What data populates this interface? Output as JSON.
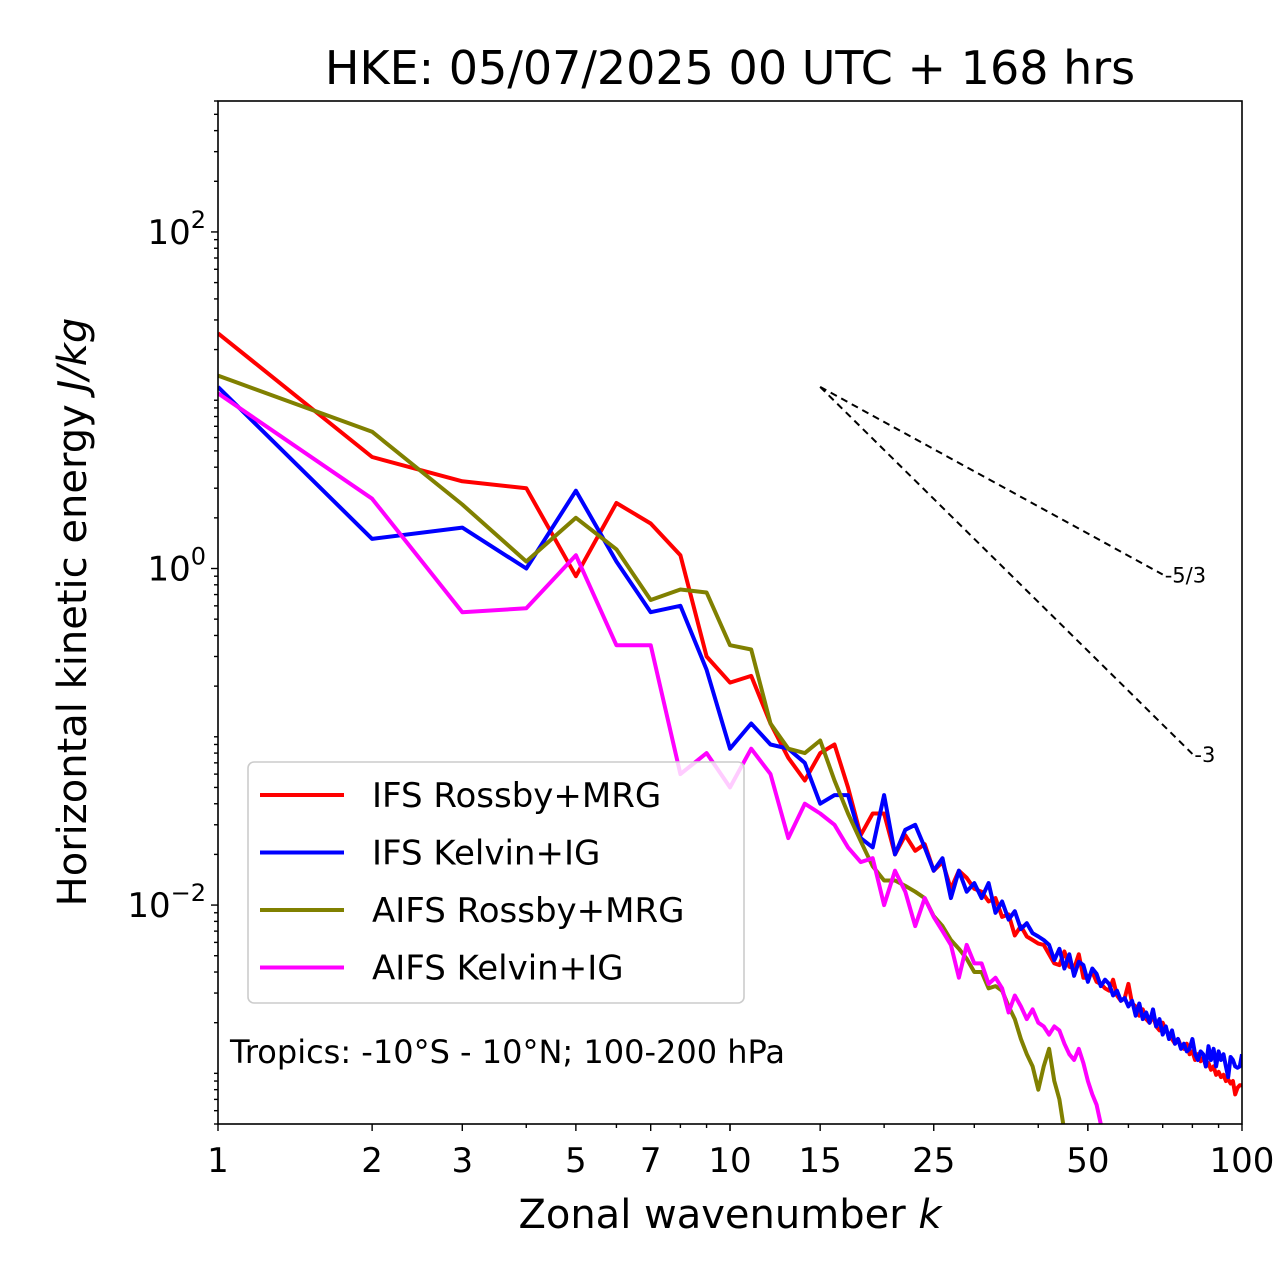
{
  "chart_data": {
    "type": "line",
    "title": "HKE: 05/07/2025 00 UTC + 168 hrs",
    "xlabel": "Zonal wavenumber",
    "xlabel_var": "k",
    "ylabel": "Horizontal kinetic energy",
    "ylabel_unit": "J/kg",
    "xscale": "log",
    "yscale": "log",
    "xlim": [
      1,
      100
    ],
    "ylim": [
      0.0005,
      600
    ],
    "x_ticks": [
      1,
      2,
      3,
      5,
      7,
      10,
      15,
      25,
      50,
      100
    ],
    "x_tick_labels": [
      "1",
      "2",
      "3",
      "5",
      "7",
      "10",
      "15",
      "25",
      "50",
      "100"
    ],
    "y_ticks": [
      {
        "value": 0.01,
        "base": "10",
        "exp": "−2"
      },
      {
        "value": 1,
        "base": "10",
        "exp": "0"
      },
      {
        "value": 100,
        "base": "10",
        "exp": "2"
      }
    ],
    "grid": false,
    "legend_position": "lower-left",
    "annotation": "Tropics: -10°S - 10°N; 100-200 hPa",
    "reference_slopes": [
      {
        "label": "-5/3",
        "slope": -1.6667,
        "x0": 15,
        "y0": 12,
        "x1": 70
      },
      {
        "label": "-3",
        "slope": -3,
        "x0": 15,
        "y0": 12,
        "x1": 80
      }
    ],
    "series": [
      {
        "name": "IFS Rossby+MRG",
        "color": "#ff0000",
        "x": [
          1,
          2,
          3,
          4,
          5,
          6,
          7,
          8,
          9,
          10,
          11,
          12,
          13,
          14,
          15,
          16,
          17,
          18,
          19,
          20,
          21,
          22,
          23,
          24,
          25,
          26,
          27,
          28,
          29,
          30,
          31,
          32,
          33,
          34,
          35,
          36,
          37,
          38,
          39,
          40,
          41,
          42,
          43,
          44,
          45,
          46,
          47,
          48,
          49,
          50,
          51,
          52,
          53,
          54,
          55,
          56,
          57,
          58,
          59,
          60,
          61,
          62,
          63,
          64,
          65,
          66,
          67,
          68,
          69,
          70,
          71,
          72,
          73,
          74,
          75,
          76,
          77,
          78,
          79,
          80,
          81,
          82,
          83,
          84,
          85,
          86,
          87,
          88,
          89,
          90,
          91,
          92,
          93,
          94,
          95,
          96,
          97,
          98,
          99,
          100
        ],
        "values": [
          25,
          4.6,
          3.3,
          3.0,
          0.9,
          2.45,
          1.85,
          1.2,
          0.3,
          0.21,
          0.23,
          0.12,
          0.075,
          0.055,
          0.08,
          0.09,
          0.05,
          0.026,
          0.035,
          0.035,
          0.02,
          0.026,
          0.021,
          0.023,
          0.016,
          0.018,
          0.0125,
          0.016,
          0.0145,
          0.0125,
          0.012,
          0.0105,
          0.011,
          0.0085,
          0.0088,
          0.0066,
          0.0075,
          0.0065,
          0.0062,
          0.0059,
          0.0058,
          0.0051,
          0.0045,
          0.0044,
          0.0053,
          0.0043,
          0.0042,
          0.0051,
          0.0037,
          0.0037,
          0.004,
          0.0035,
          0.0034,
          0.0032,
          0.0031,
          0.0036,
          0.0029,
          0.0027,
          0.0028,
          0.0034,
          0.0026,
          0.0025,
          0.0022,
          0.0024,
          0.0021,
          0.002,
          0.0022,
          0.0019,
          0.0018,
          0.002,
          0.0018,
          0.0017,
          0.0016,
          0.0015,
          0.0016,
          0.00145,
          0.0014,
          0.0015,
          0.0013,
          0.00135,
          0.0012,
          0.0013,
          0.00118,
          0.00125,
          0.0011,
          0.00115,
          0.00105,
          0.0011,
          0.00098,
          0.00102,
          0.00095,
          0.00098,
          0.0009,
          0.00092,
          0.00087,
          0.0009,
          0.00075,
          0.00082,
          0.00085,
          0.00085
        ]
      },
      {
        "name": "IFS Kelvin+IG",
        "color": "#0000ff",
        "x": [
          1,
          2,
          3,
          4,
          5,
          6,
          7,
          8,
          9,
          10,
          11,
          12,
          13,
          14,
          15,
          16,
          17,
          18,
          19,
          20,
          21,
          22,
          23,
          24,
          25,
          26,
          27,
          28,
          29,
          30,
          31,
          32,
          33,
          34,
          35,
          36,
          37,
          38,
          39,
          40,
          41,
          42,
          43,
          44,
          45,
          46,
          47,
          48,
          49,
          50,
          51,
          52,
          53,
          54,
          55,
          56,
          57,
          58,
          59,
          60,
          61,
          62,
          63,
          64,
          65,
          66,
          67,
          68,
          69,
          70,
          71,
          72,
          73,
          74,
          75,
          76,
          77,
          78,
          79,
          80,
          81,
          82,
          83,
          84,
          85,
          86,
          87,
          88,
          89,
          90,
          91,
          92,
          93,
          94,
          95,
          96,
          97,
          98,
          99,
          100
        ],
        "values": [
          12,
          1.5,
          1.75,
          1.0,
          2.9,
          1.1,
          0.55,
          0.6,
          0.25,
          0.085,
          0.12,
          0.09,
          0.085,
          0.07,
          0.04,
          0.045,
          0.045,
          0.025,
          0.022,
          0.045,
          0.02,
          0.028,
          0.03,
          0.022,
          0.016,
          0.019,
          0.011,
          0.016,
          0.012,
          0.0135,
          0.011,
          0.0135,
          0.009,
          0.0105,
          0.0082,
          0.0092,
          0.0072,
          0.0078,
          0.0068,
          0.0065,
          0.0062,
          0.0058,
          0.0047,
          0.0055,
          0.0042,
          0.0051,
          0.0038,
          0.0046,
          0.0044,
          0.0035,
          0.0042,
          0.0039,
          0.0033,
          0.0036,
          0.0034,
          0.0029,
          0.0031,
          0.0027,
          0.0028,
          0.0025,
          0.0027,
          0.0022,
          0.0026,
          0.0021,
          0.0023,
          0.002,
          0.0024,
          0.0019,
          0.0021,
          0.0017,
          0.0019,
          0.0016,
          0.0018,
          0.0015,
          0.0016,
          0.0014,
          0.0015,
          0.00135,
          0.0014,
          0.0016,
          0.0013,
          0.0012,
          0.00135,
          0.0013,
          0.0011,
          0.00145,
          0.0012,
          0.0014,
          0.0011,
          0.00135,
          0.0012,
          0.0013,
          0.0011,
          0.00095,
          0.00125,
          0.0012,
          0.0011,
          0.00108,
          0.0011,
          0.0013
        ]
      },
      {
        "name": "AIFS Rossby+MRG",
        "color": "#808000",
        "x": [
          1,
          2,
          3,
          4,
          5,
          6,
          7,
          8,
          9,
          10,
          11,
          12,
          13,
          14,
          15,
          16,
          17,
          18,
          19,
          20,
          21,
          22,
          23,
          24,
          25,
          26,
          27,
          28,
          29,
          30,
          31,
          32,
          33,
          34,
          35,
          36,
          37,
          38,
          39,
          40,
          41,
          42,
          43,
          44,
          45
        ],
        "values": [
          14,
          6.5,
          2.4,
          1.1,
          2.0,
          1.3,
          0.65,
          0.75,
          0.72,
          0.35,
          0.33,
          0.12,
          0.085,
          0.08,
          0.095,
          0.055,
          0.035,
          0.024,
          0.017,
          0.014,
          0.014,
          0.013,
          0.012,
          0.011,
          0.0086,
          0.0075,
          0.0062,
          0.0055,
          0.0048,
          0.004,
          0.004,
          0.0032,
          0.0033,
          0.0031,
          0.0025,
          0.0021,
          0.0016,
          0.0013,
          0.0011,
          0.0008,
          0.0011,
          0.0014,
          0.0009,
          0.0007,
          0.00045
        ]
      },
      {
        "name": "AIFS Kelvin+IG",
        "color": "#ff00ff",
        "x": [
          1,
          2,
          3,
          4,
          5,
          6,
          7,
          8,
          9,
          10,
          11,
          12,
          13,
          14,
          15,
          16,
          17,
          18,
          19,
          20,
          21,
          22,
          23,
          24,
          25,
          26,
          27,
          28,
          29,
          30,
          31,
          32,
          33,
          34,
          35,
          36,
          37,
          38,
          39,
          40,
          41,
          42,
          43,
          44,
          45,
          46,
          47,
          48,
          49,
          50,
          51,
          52,
          53,
          54,
          55
        ],
        "values": [
          11,
          2.6,
          0.55,
          0.58,
          1.2,
          0.35,
          0.35,
          0.06,
          0.08,
          0.05,
          0.085,
          0.06,
          0.025,
          0.04,
          0.035,
          0.03,
          0.022,
          0.018,
          0.019,
          0.01,
          0.016,
          0.012,
          0.0075,
          0.011,
          0.0085,
          0.007,
          0.0058,
          0.0037,
          0.0058,
          0.0045,
          0.0045,
          0.0034,
          0.0037,
          0.0032,
          0.0023,
          0.0029,
          0.0025,
          0.0021,
          0.0024,
          0.002,
          0.0019,
          0.0017,
          0.0019,
          0.0018,
          0.0015,
          0.0013,
          0.0012,
          0.0014,
          0.00115,
          0.0009,
          0.00075,
          0.00065,
          0.0005,
          0.00045,
          0.0004
        ]
      }
    ]
  }
}
